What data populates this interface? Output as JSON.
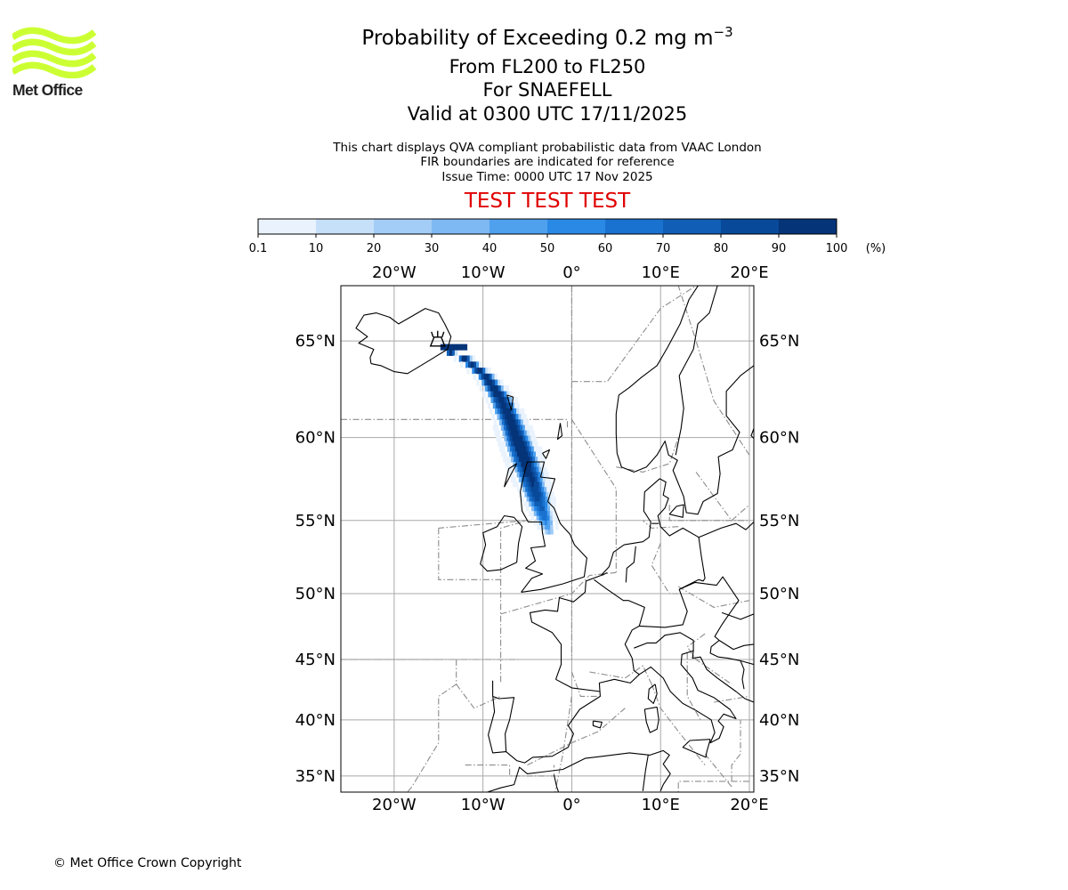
{
  "logo": {
    "text": "Met Office",
    "color": "#ccff33"
  },
  "title": {
    "main": "Probability of Exceeding 0.2 mg m",
    "main_superscript": "−3",
    "levels": "From FL200 to FL250",
    "volcano": "For SNAEFELL",
    "valid": "Valid at 0300 UTC 17/11/2025"
  },
  "notes": {
    "line1": "This chart displays QVA compliant probabilistic data from VAAC London",
    "line2": "FIR boundaries are indicated for reference",
    "line3": "Issue Time: 0000 UTC 17 Nov 2025"
  },
  "test_banner": {
    "text": "TEST TEST TEST",
    "color": "#e00000"
  },
  "colorbar": {
    "ticks": [
      "0.1",
      "10",
      "20",
      "30",
      "40",
      "50",
      "60",
      "70",
      "80",
      "90",
      "100"
    ],
    "unit": "(%)",
    "colors": [
      "#eaf3fd",
      "#c7e0f9",
      "#a3cdf6",
      "#7eb9f3",
      "#4fa1ee",
      "#2b89e6",
      "#1a72d0",
      "#105eb5",
      "#09499a",
      "#053479",
      "#022557"
    ]
  },
  "map": {
    "projection": "Mercator",
    "lon_range": [
      -26,
      20.5
    ],
    "lat_range": [
      33.5,
      67.5
    ],
    "lon_labels": [
      {
        "lon": -20,
        "label": "20°W"
      },
      {
        "lon": -10,
        "label": "10°W"
      },
      {
        "lon": 0,
        "label": "0°"
      },
      {
        "lon": 10,
        "label": "10°E"
      },
      {
        "lon": 20,
        "label": "20°E"
      }
    ],
    "lat_labels": [
      {
        "lat": 65,
        "label": "65°N"
      },
      {
        "lat": 60,
        "label": "60°N"
      },
      {
        "lat": 55,
        "label": "55°N"
      },
      {
        "lat": 50,
        "label": "50°N"
      },
      {
        "lat": 45,
        "label": "45°N"
      },
      {
        "lat": 40,
        "label": "40°N"
      },
      {
        "lat": 35,
        "label": "35°N"
      }
    ],
    "volcano": {
      "name": "SNAEFELL",
      "lon": -15.1,
      "lat": 64.8
    },
    "ash_plume_centerline": [
      {
        "lon": -14.8,
        "lat": 64.8,
        "halfwidth": 0.5,
        "prob": 90
      },
      {
        "lon": -12.2,
        "lat": 64.3,
        "halfwidth": 0.8,
        "prob": 95
      },
      {
        "lon": -9.8,
        "lat": 63.4,
        "halfwidth": 1.0,
        "prob": 97
      },
      {
        "lon": -8.2,
        "lat": 62.3,
        "halfwidth": 1.3,
        "prob": 97
      },
      {
        "lon": -6.9,
        "lat": 60.9,
        "halfwidth": 1.5,
        "prob": 98
      },
      {
        "lon": -5.8,
        "lat": 59.4,
        "halfwidth": 1.7,
        "prob": 98
      },
      {
        "lon": -4.9,
        "lat": 58.0,
        "halfwidth": 1.6,
        "prob": 95
      },
      {
        "lon": -4.0,
        "lat": 56.5,
        "halfwidth": 1.4,
        "prob": 85
      },
      {
        "lon": -3.2,
        "lat": 55.2,
        "halfwidth": 1.0,
        "prob": 60
      },
      {
        "lon": -2.7,
        "lat": 54.4,
        "halfwidth": 0.6,
        "prob": 30
      }
    ]
  },
  "copyright": "© Met Office Crown Copyright"
}
